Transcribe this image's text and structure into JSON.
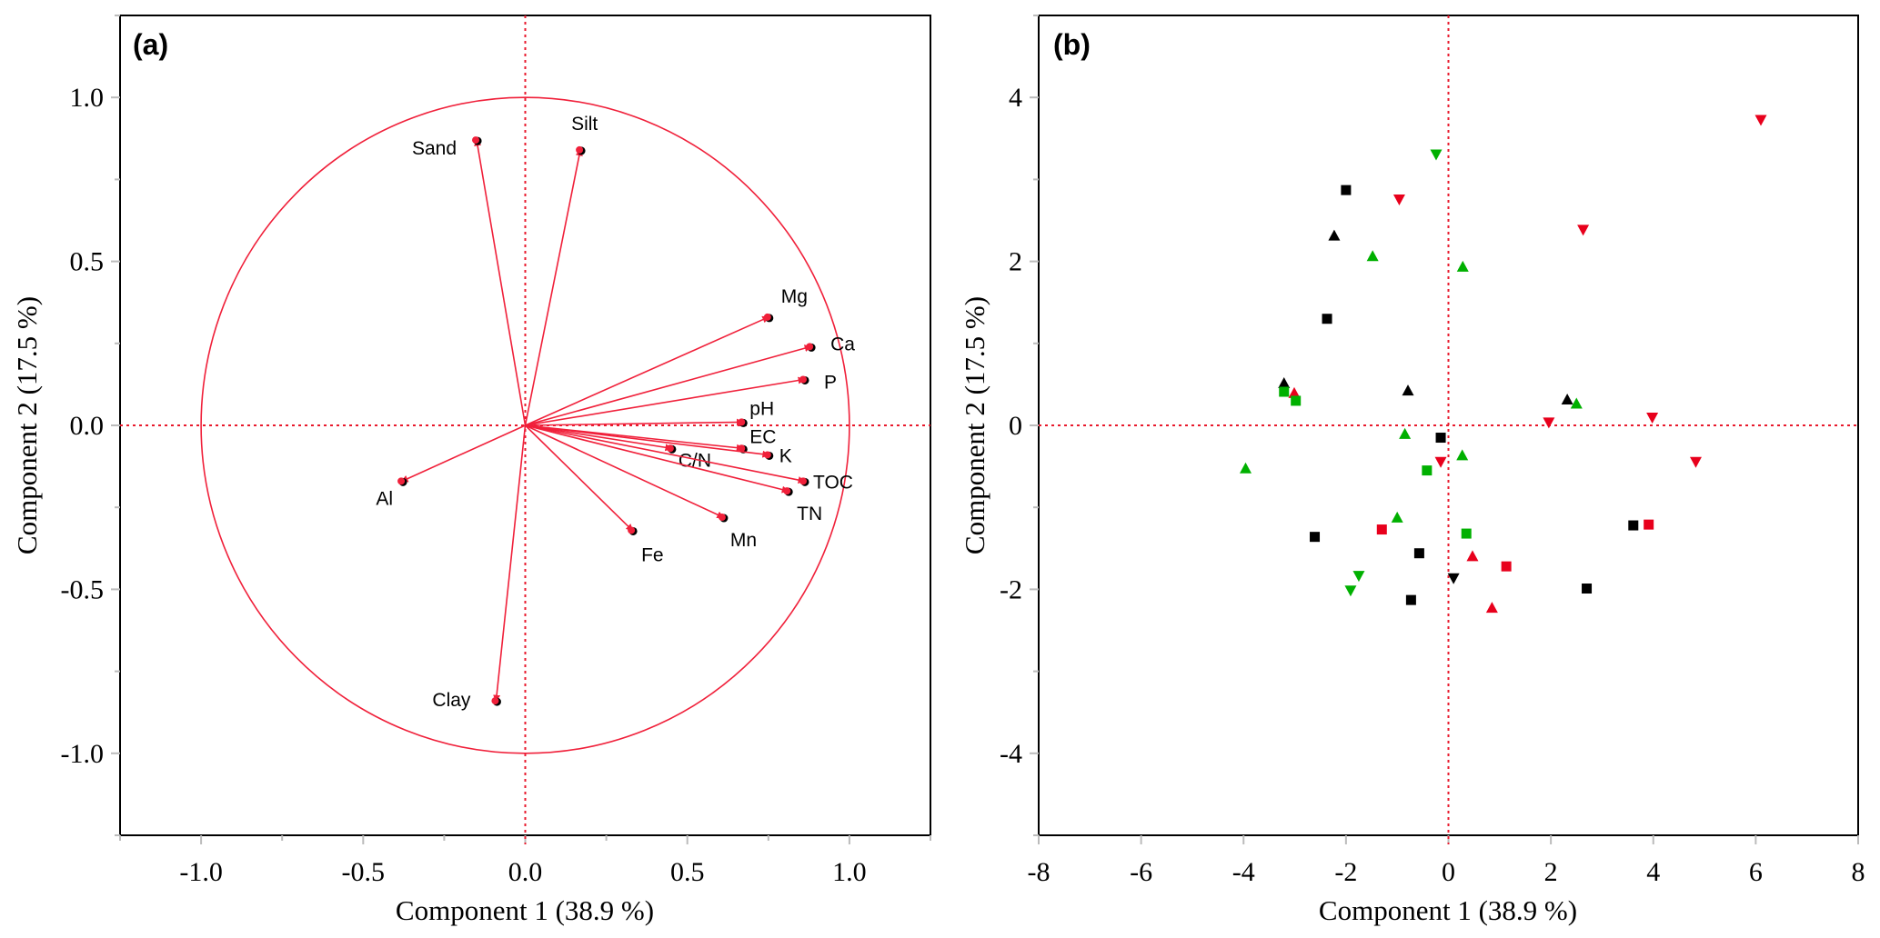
{
  "chart_data": [
    {
      "type": "scatter",
      "subtype": "pca-loadings-biplot",
      "panel_label": "(a)",
      "title": "",
      "xlabel": "Component 1  (38.9 %)",
      "ylabel": "Component 2  (17.5 %)",
      "xlim": [
        -1.25,
        1.25
      ],
      "ylim": [
        -1.25,
        1.25
      ],
      "xticks": [
        -1.0,
        -0.5,
        0.0,
        0.5,
        1.0
      ],
      "xtick_labels": [
        "-1.0",
        "-0.5",
        "0.0",
        "0.5",
        "1.0"
      ],
      "yticks": [
        -1.0,
        -0.5,
        0.0,
        0.5,
        1.0
      ],
      "ytick_labels": [
        "-1.0",
        "-0.5",
        "0.0",
        "0.5",
        "1.0"
      ],
      "minor_tick_step": 0.25,
      "correlation_circle_radius": 1.0,
      "reference_lines": {
        "x": 0,
        "y": 0,
        "style": "dotted",
        "color": "#e8192c"
      },
      "grid": false,
      "vector_color": "#f0203a",
      "vectors": [
        {
          "name": "Sand",
          "x": -0.15,
          "y": 0.87
        },
        {
          "name": "Silt",
          "x": 0.17,
          "y": 0.84
        },
        {
          "name": "Mg",
          "x": 0.75,
          "y": 0.33
        },
        {
          "name": "Ca",
          "x": 0.88,
          "y": 0.24
        },
        {
          "name": "P",
          "x": 0.86,
          "y": 0.14
        },
        {
          "name": "pH",
          "x": 0.67,
          "y": 0.01
        },
        {
          "name": "EC",
          "x": 0.67,
          "y": -0.07
        },
        {
          "name": "K",
          "x": 0.75,
          "y": -0.09
        },
        {
          "name": "C/N",
          "x": 0.45,
          "y": -0.07
        },
        {
          "name": "TOC",
          "x": 0.86,
          "y": -0.17
        },
        {
          "name": "TN",
          "x": 0.81,
          "y": -0.2
        },
        {
          "name": "Mn",
          "x": 0.61,
          "y": -0.28
        },
        {
          "name": "Fe",
          "x": 0.33,
          "y": -0.32
        },
        {
          "name": "Al",
          "x": -0.38,
          "y": -0.17
        },
        {
          "name": "Clay",
          "x": -0.09,
          "y": -0.84
        }
      ]
    },
    {
      "type": "scatter",
      "subtype": "pca-scores",
      "panel_label": "(b)",
      "title": "",
      "xlabel": "Component 1  (38.9 %)",
      "ylabel": "Component 2  (17.5 %)",
      "xlim": [
        -8,
        8
      ],
      "ylim": [
        -5,
        5
      ],
      "xticks": [
        -8,
        -6,
        -4,
        -2,
        0,
        2,
        4,
        6,
        8
      ],
      "xtick_labels": [
        "-8",
        "-6",
        "-4",
        "-2",
        "0",
        "2",
        "4",
        "6",
        "8"
      ],
      "yticks": [
        -4,
        -2,
        0,
        2,
        4
      ],
      "ytick_labels": [
        "-4",
        "-2",
        "0",
        "2",
        "4"
      ],
      "y_minor_tick_step": 1,
      "reference_lines": {
        "x": 0,
        "y": 0,
        "style": "dotted",
        "color": "#e8192c"
      },
      "grid": false,
      "legend": null,
      "colors": {
        "black": "#000000",
        "red": "#e8001c",
        "green": "#00b000"
      },
      "points": [
        {
          "x": -0.24,
          "y": 3.31,
          "marker": "triangle-down",
          "color": "green"
        },
        {
          "x": -2.0,
          "y": 2.87,
          "marker": "square",
          "color": "black"
        },
        {
          "x": -0.96,
          "y": 2.76,
          "marker": "triangle-down",
          "color": "red"
        },
        {
          "x": -2.23,
          "y": 2.31,
          "marker": "triangle-up",
          "color": "black"
        },
        {
          "x": -1.48,
          "y": 2.06,
          "marker": "triangle-up",
          "color": "green"
        },
        {
          "x": -2.37,
          "y": 1.3,
          "marker": "square",
          "color": "black"
        },
        {
          "x": -3.21,
          "y": 0.51,
          "marker": "triangle-up",
          "color": "black"
        },
        {
          "x": -3.21,
          "y": 0.41,
          "marker": "square",
          "color": "green"
        },
        {
          "x": -3.01,
          "y": 0.39,
          "marker": "triangle-up",
          "color": "red"
        },
        {
          "x": -2.98,
          "y": 0.3,
          "marker": "square",
          "color": "green"
        },
        {
          "x": -0.79,
          "y": 0.42,
          "marker": "triangle-up",
          "color": "black"
        },
        {
          "x": 6.1,
          "y": 3.73,
          "marker": "triangle-down",
          "color": "red"
        },
        {
          "x": 2.63,
          "y": 2.39,
          "marker": "triangle-down",
          "color": "red"
        },
        {
          "x": 0.28,
          "y": 1.93,
          "marker": "triangle-up",
          "color": "green"
        },
        {
          "x": 2.32,
          "y": 0.31,
          "marker": "triangle-up",
          "color": "black"
        },
        {
          "x": 2.5,
          "y": 0.26,
          "marker": "triangle-up",
          "color": "green"
        },
        {
          "x": 1.96,
          "y": 0.04,
          "marker": "triangle-down",
          "color": "red"
        },
        {
          "x": 3.98,
          "y": 0.1,
          "marker": "triangle-down",
          "color": "red"
        },
        {
          "x": -0.85,
          "y": -0.11,
          "marker": "triangle-up",
          "color": "green"
        },
        {
          "x": -0.15,
          "y": -0.15,
          "marker": "square",
          "color": "black"
        },
        {
          "x": 0.27,
          "y": -0.37,
          "marker": "triangle-up",
          "color": "green"
        },
        {
          "x": -0.15,
          "y": -0.44,
          "marker": "triangle-down",
          "color": "red"
        },
        {
          "x": -0.42,
          "y": -0.55,
          "marker": "square",
          "color": "green"
        },
        {
          "x": -3.96,
          "y": -0.53,
          "marker": "triangle-up",
          "color": "green"
        },
        {
          "x": -1.0,
          "y": -1.13,
          "marker": "triangle-up",
          "color": "green"
        },
        {
          "x": -1.3,
          "y": -1.27,
          "marker": "square",
          "color": "red"
        },
        {
          "x": -2.61,
          "y": -1.36,
          "marker": "square",
          "color": "black"
        },
        {
          "x": 0.35,
          "y": -1.32,
          "marker": "square",
          "color": "green"
        },
        {
          "x": -0.57,
          "y": -1.56,
          "marker": "square",
          "color": "black"
        },
        {
          "x": 0.47,
          "y": -1.6,
          "marker": "triangle-up",
          "color": "red"
        },
        {
          "x": -1.75,
          "y": -1.83,
          "marker": "triangle-down",
          "color": "green"
        },
        {
          "x": 0.1,
          "y": -1.86,
          "marker": "triangle-down",
          "color": "black"
        },
        {
          "x": -1.91,
          "y": -2.01,
          "marker": "triangle-down",
          "color": "green"
        },
        {
          "x": -0.73,
          "y": -2.13,
          "marker": "square",
          "color": "black"
        },
        {
          "x": 0.85,
          "y": -2.23,
          "marker": "triangle-up",
          "color": "red"
        },
        {
          "x": 4.83,
          "y": -0.44,
          "marker": "triangle-down",
          "color": "red"
        },
        {
          "x": 3.61,
          "y": -1.22,
          "marker": "square",
          "color": "black"
        },
        {
          "x": 3.91,
          "y": -1.21,
          "marker": "square",
          "color": "red"
        },
        {
          "x": 1.13,
          "y": -1.72,
          "marker": "square",
          "color": "red"
        },
        {
          "x": 2.7,
          "y": -1.99,
          "marker": "square",
          "color": "black"
        }
      ]
    }
  ]
}
